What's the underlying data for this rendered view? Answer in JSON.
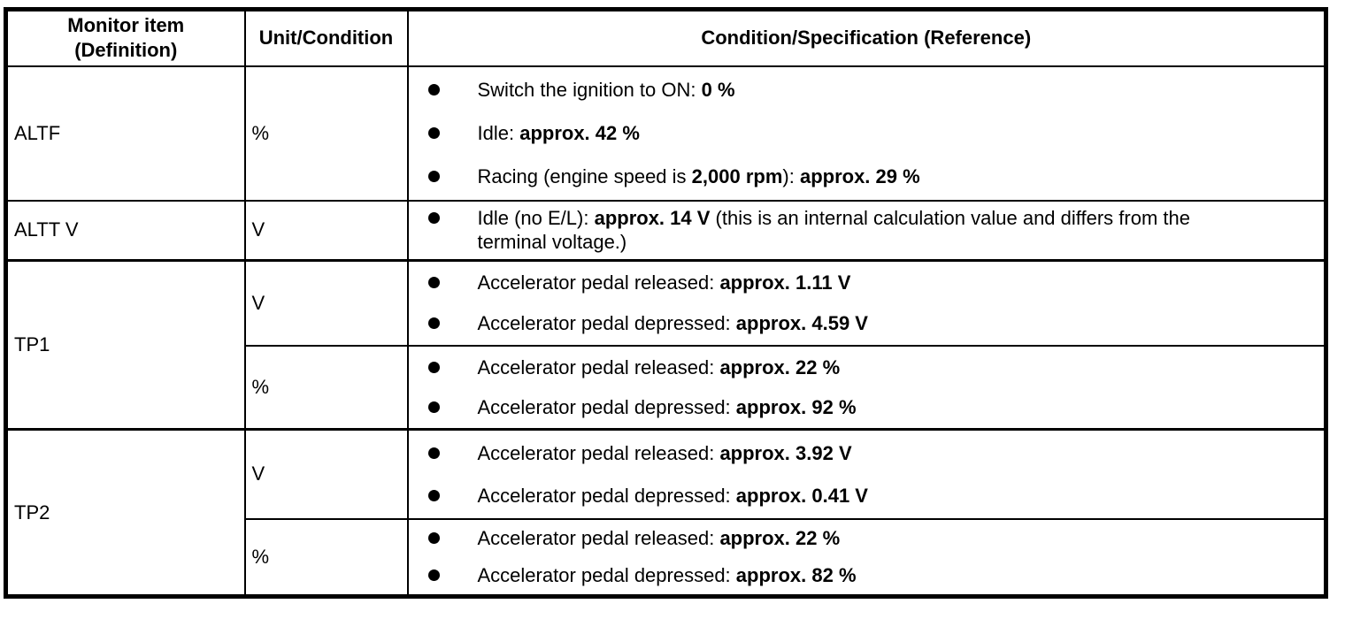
{
  "colors": {
    "border": "#000000",
    "background": "#ffffff",
    "text": "#000000"
  },
  "header": {
    "monitor_item": "Monitor item\n(Definition)",
    "unit_condition": "Unit/Condition",
    "condition_spec": "Condition/Specification (Reference)"
  },
  "rows": [
    {
      "item": "ALTF",
      "subrows": [
        {
          "unit": "%",
          "bullets": [
            {
              "lines": [
                [
                  {
                    "t": "Switch the ignition to ON: "
                  },
                  {
                    "t": "0 %",
                    "b": true
                  }
                ]
              ]
            },
            {
              "lines": [
                [
                  {
                    "t": "Idle: "
                  },
                  {
                    "t": "approx. 42 %",
                    "b": true
                  }
                ]
              ]
            },
            {
              "lines": [
                [
                  {
                    "t": "Racing (engine speed is "
                  },
                  {
                    "t": "2,000 rpm",
                    "b": true
                  },
                  {
                    "t": "): "
                  },
                  {
                    "t": "approx. 29 %",
                    "b": true
                  }
                ]
              ]
            }
          ]
        }
      ]
    },
    {
      "item": "ALTT V",
      "subrows": [
        {
          "unit": "V",
          "bullets": [
            {
              "lines": [
                [
                  {
                    "t": "Idle (no E/L): "
                  },
                  {
                    "t": "approx. 14 V",
                    "b": true
                  },
                  {
                    "t": " (this is an internal calculation value and differs from the"
                  }
                ],
                [
                  {
                    "t": "terminal voltage.)"
                  }
                ]
              ]
            }
          ]
        }
      ]
    },
    {
      "item": "TP1",
      "subrows": [
        {
          "unit": "V",
          "bullets": [
            {
              "lines": [
                [
                  {
                    "t": "Accelerator pedal released: "
                  },
                  {
                    "t": "approx. 1.11 V",
                    "b": true
                  }
                ]
              ]
            },
            {
              "lines": [
                [
                  {
                    "t": "Accelerator pedal depressed: "
                  },
                  {
                    "t": "approx. 4.59 V",
                    "b": true
                  }
                ]
              ]
            }
          ]
        },
        {
          "unit": "%",
          "bullets": [
            {
              "lines": [
                [
                  {
                    "t": "Accelerator pedal released: "
                  },
                  {
                    "t": "approx. 22 %",
                    "b": true
                  }
                ]
              ]
            },
            {
              "lines": [
                [
                  {
                    "t": "Accelerator pedal depressed: "
                  },
                  {
                    "t": "approx. 92 %",
                    "b": true
                  }
                ]
              ]
            }
          ]
        }
      ]
    },
    {
      "item": "TP2",
      "subrows": [
        {
          "unit": "V",
          "bullets": [
            {
              "lines": [
                [
                  {
                    "t": "Accelerator pedal released: "
                  },
                  {
                    "t": "approx. 3.92 V",
                    "b": true
                  }
                ]
              ]
            },
            {
              "lines": [
                [
                  {
                    "t": "Accelerator pedal depressed: "
                  },
                  {
                    "t": "approx. 0.41 V",
                    "b": true
                  }
                ]
              ]
            }
          ]
        },
        {
          "unit": "%",
          "bullets": [
            {
              "lines": [
                [
                  {
                    "t": "Accelerator pedal released: "
                  },
                  {
                    "t": "approx. 22 %",
                    "b": true
                  }
                ]
              ]
            },
            {
              "lines": [
                [
                  {
                    "t": "Accelerator pedal depressed: "
                  },
                  {
                    "t": "approx. 82 %",
                    "b": true
                  }
                ]
              ]
            }
          ]
        }
      ]
    }
  ]
}
